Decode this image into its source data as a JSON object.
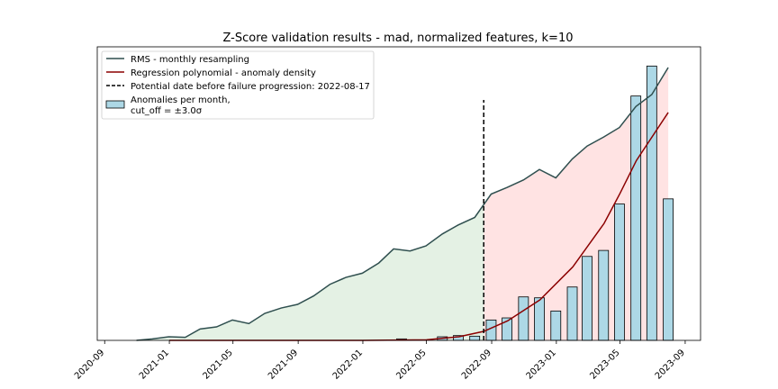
{
  "chart_data": {
    "type": "bar",
    "title": "Z-Score validation results - mad, normalized features, k=10",
    "xlabel": "",
    "ylabel": "",
    "x_tick_labels": [
      "2020-09",
      "2021-01",
      "2021-05",
      "2021-09",
      "2022-01",
      "2022-05",
      "2022-09",
      "2023-01",
      "2023-05",
      "2023-09"
    ],
    "x_ticks": [
      "2020-09-01",
      "2021-01-01",
      "2021-05-01",
      "2021-09-01",
      "2022-01-01",
      "2022-05-01",
      "2022-09-01",
      "2023-01-01",
      "2023-05-01",
      "2023-09-01"
    ],
    "xlim": [
      "2020-08-18",
      "2023-09-30"
    ],
    "ylim": [
      0,
      1.0
    ],
    "grid": false,
    "legend_position": "top-left",
    "legend": {
      "rms": "RMS - monthly resampling",
      "poly": "Regression polynomial - anomaly density",
      "vline": "Potential date before failure progression: 2022-08-17",
      "bars_line1": "Anomalies per month,",
      "bars_line2": "cut_off = ±3.0σ"
    },
    "split_date": "2022-08-17",
    "rms_series": {
      "x": [
        "2020-10-31",
        "2020-11-30",
        "2020-12-31",
        "2021-01-31",
        "2021-02-28",
        "2021-03-31",
        "2021-04-30",
        "2021-05-31",
        "2021-06-30",
        "2021-07-31",
        "2021-08-31",
        "2021-09-30",
        "2021-10-31",
        "2021-11-30",
        "2021-12-31",
        "2022-01-31",
        "2022-02-28",
        "2022-03-31",
        "2022-04-30",
        "2022-05-31",
        "2022-06-30",
        "2022-07-31",
        "2022-08-31",
        "2022-09-30",
        "2022-10-31",
        "2022-11-30",
        "2022-12-31",
        "2023-01-31",
        "2023-02-28",
        "2023-03-31",
        "2023-04-30",
        "2023-05-31",
        "2023-06-30",
        "2023-07-31"
      ],
      "y": [
        0.0,
        0.005,
        0.012,
        0.01,
        0.038,
        0.045,
        0.068,
        0.056,
        0.09,
        0.108,
        0.12,
        0.148,
        0.187,
        0.21,
        0.224,
        0.258,
        0.305,
        0.298,
        0.315,
        0.355,
        0.385,
        0.41,
        0.488,
        0.51,
        0.535,
        0.57,
        0.542,
        0.605,
        0.648,
        0.678,
        0.71,
        0.78,
        0.82,
        0.91
      ]
    },
    "poly_series": {
      "x": [
        "2021-01-01",
        "2021-07-01",
        "2022-01-01",
        "2022-05-01",
        "2022-07-01",
        "2022-08-17",
        "2022-10-01",
        "2022-12-01",
        "2023-02-01",
        "2023-04-01",
        "2023-05-01",
        "2023-06-01",
        "2023-07-31"
      ],
      "y": [
        0.0,
        0.0,
        0.0,
        0.002,
        0.012,
        0.03,
        0.065,
        0.135,
        0.245,
        0.39,
        0.49,
        0.6,
        0.76
      ]
    },
    "bars": {
      "x": [
        "2022-03-15",
        "2022-05-31",
        "2022-06-30",
        "2022-07-31",
        "2022-08-31",
        "2022-09-30",
        "2022-10-31",
        "2022-11-30",
        "2022-12-31",
        "2023-01-31",
        "2023-02-28",
        "2023-03-31",
        "2023-04-30",
        "2023-05-31",
        "2023-06-30",
        "2023-07-31"
      ],
      "y": [
        0.005,
        0.012,
        0.016,
        0.014,
        0.068,
        0.075,
        0.145,
        0.142,
        0.098,
        0.178,
        0.28,
        0.3,
        0.455,
        0.815,
        0.915,
        0.472
      ]
    },
    "colors": {
      "rms_line": "#2f4f4f",
      "poly_line": "#8b0000",
      "vline": "#000000",
      "bar_fill": "#add8e6",
      "bar_edge": "#000000",
      "fill_before": "#e4f1e4",
      "fill_after": "#ffe3e3"
    }
  }
}
